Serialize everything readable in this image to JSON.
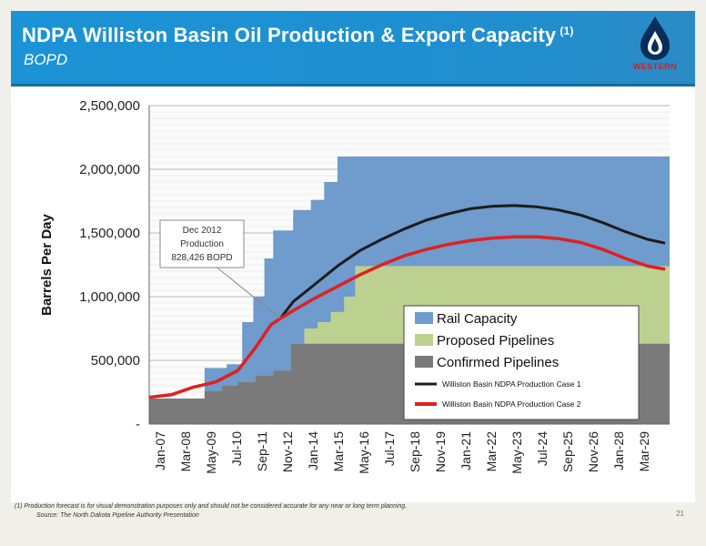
{
  "header": {
    "title": "NDPA Williston Basin Oil Production & Export Capacity",
    "title_sup": "(1)",
    "subtitle": "BOPD",
    "logo_text": "WESTERN",
    "colors": {
      "banner": "#1b93d6",
      "logo_drop": "#0a2e5c",
      "logo_text": "#d32020"
    }
  },
  "chart_data": {
    "type": "area",
    "ylabel": "Barrels Per Day",
    "xlabel": "",
    "ylim": [
      0,
      2500000
    ],
    "y_ticks": [
      {
        "value": 0,
        "label": "-"
      },
      {
        "value": 500000,
        "label": "500,000"
      },
      {
        "value": 1000000,
        "label": "1,000,000"
      },
      {
        "value": 1500000,
        "label": "1,500,000"
      },
      {
        "value": 2000000,
        "label": "2,000,000"
      },
      {
        "value": 2500000,
        "label": "2,500,000"
      }
    ],
    "x_labels": [
      "Jan-07",
      "Mar-08",
      "May-09",
      "Jul-10",
      "Sep-11",
      "Nov-12",
      "Jan-14",
      "Mar-15",
      "May-16",
      "Jul-17",
      "Sep-18",
      "Nov-19",
      "Jan-21",
      "Mar-22",
      "May-23",
      "Jul-24",
      "Sep-25",
      "Nov-26",
      "Jan-28",
      "Mar-29"
    ],
    "x_end": 2030.5,
    "grid": true,
    "legend_position": "bottom-right",
    "annotation": {
      "lines": [
        "Dec 2012",
        "Production",
        "828,426 BOPD"
      ],
      "x": 2012.92,
      "y": 828426
    },
    "series": [
      {
        "name": "Confirmed Pipelines",
        "kind": "area",
        "color": "#7a7a7a",
        "points": [
          [
            2007.0,
            200000
          ],
          [
            2009.5,
            200000
          ],
          [
            2009.5,
            260000
          ],
          [
            2010.3,
            260000
          ],
          [
            2010.3,
            300000
          ],
          [
            2011.0,
            300000
          ],
          [
            2011.0,
            330000
          ],
          [
            2011.8,
            330000
          ],
          [
            2011.8,
            380000
          ],
          [
            2012.6,
            380000
          ],
          [
            2012.6,
            420000
          ],
          [
            2013.4,
            420000
          ],
          [
            2013.4,
            630000
          ],
          [
            2030.5,
            630000
          ]
        ]
      },
      {
        "name": "Proposed Pipelines",
        "kind": "area",
        "color": "#bcd18f",
        "points": [
          [
            2007.0,
            200000
          ],
          [
            2009.5,
            200000
          ],
          [
            2009.5,
            260000
          ],
          [
            2010.3,
            260000
          ],
          [
            2010.3,
            300000
          ],
          [
            2011.0,
            300000
          ],
          [
            2011.0,
            330000
          ],
          [
            2011.8,
            330000
          ],
          [
            2011.8,
            380000
          ],
          [
            2012.6,
            380000
          ],
          [
            2012.6,
            420000
          ],
          [
            2013.4,
            420000
          ],
          [
            2013.4,
            630000
          ],
          [
            2014.0,
            630000
          ],
          [
            2014.0,
            750000
          ],
          [
            2014.6,
            750000
          ],
          [
            2014.6,
            800000
          ],
          [
            2015.2,
            800000
          ],
          [
            2015.2,
            880000
          ],
          [
            2015.8,
            880000
          ],
          [
            2015.8,
            1000000
          ],
          [
            2016.3,
            1000000
          ],
          [
            2016.3,
            1240000
          ],
          [
            2030.5,
            1240000
          ]
        ]
      },
      {
        "name": "Rail Capacity",
        "kind": "area",
        "color": "#6f9bcd",
        "points": [
          [
            2007.0,
            200000
          ],
          [
            2009.5,
            200000
          ],
          [
            2009.5,
            440000
          ],
          [
            2010.5,
            440000
          ],
          [
            2010.5,
            470000
          ],
          [
            2011.2,
            470000
          ],
          [
            2011.2,
            800000
          ],
          [
            2011.7,
            800000
          ],
          [
            2011.7,
            1000000
          ],
          [
            2012.2,
            1000000
          ],
          [
            2012.2,
            1300000
          ],
          [
            2012.6,
            1300000
          ],
          [
            2012.6,
            1520000
          ],
          [
            2013.5,
            1520000
          ],
          [
            2013.5,
            1680000
          ],
          [
            2014.3,
            1680000
          ],
          [
            2014.3,
            1760000
          ],
          [
            2014.9,
            1760000
          ],
          [
            2014.9,
            1900000
          ],
          [
            2015.5,
            1900000
          ],
          [
            2015.5,
            2100000
          ],
          [
            2030.5,
            2100000
          ]
        ]
      },
      {
        "name": "Williston Basin NDPA Production Case 1",
        "kind": "line",
        "color": "#1c1c1c",
        "points": [
          [
            2007.0,
            210000
          ],
          [
            2008.0,
            230000
          ],
          [
            2009.0,
            290000
          ],
          [
            2010.0,
            330000
          ],
          [
            2011.0,
            420000
          ],
          [
            2011.8,
            600000
          ],
          [
            2012.5,
            780000
          ],
          [
            2012.92,
            828426
          ],
          [
            2013.5,
            960000
          ],
          [
            2014.5,
            1100000
          ],
          [
            2015.5,
            1240000
          ],
          [
            2016.5,
            1360000
          ],
          [
            2017.5,
            1450000
          ],
          [
            2018.5,
            1530000
          ],
          [
            2019.5,
            1600000
          ],
          [
            2020.5,
            1650000
          ],
          [
            2021.5,
            1690000
          ],
          [
            2022.5,
            1710000
          ],
          [
            2023.5,
            1715000
          ],
          [
            2024.5,
            1705000
          ],
          [
            2025.5,
            1680000
          ],
          [
            2026.5,
            1640000
          ],
          [
            2027.5,
            1580000
          ],
          [
            2028.5,
            1510000
          ],
          [
            2029.5,
            1450000
          ],
          [
            2030.3,
            1420000
          ]
        ]
      },
      {
        "name": "Williston Basin NDPA Production Case 2",
        "kind": "line",
        "color": "#e02020",
        "points": [
          [
            2007.0,
            210000
          ],
          [
            2008.0,
            230000
          ],
          [
            2009.0,
            290000
          ],
          [
            2010.0,
            330000
          ],
          [
            2011.0,
            420000
          ],
          [
            2011.8,
            600000
          ],
          [
            2012.5,
            780000
          ],
          [
            2012.92,
            828426
          ],
          [
            2013.5,
            890000
          ],
          [
            2014.5,
            990000
          ],
          [
            2015.5,
            1080000
          ],
          [
            2016.5,
            1170000
          ],
          [
            2017.5,
            1250000
          ],
          [
            2018.5,
            1320000
          ],
          [
            2019.5,
            1370000
          ],
          [
            2020.5,
            1410000
          ],
          [
            2021.5,
            1440000
          ],
          [
            2022.5,
            1460000
          ],
          [
            2023.5,
            1470000
          ],
          [
            2024.5,
            1470000
          ],
          [
            2025.5,
            1455000
          ],
          [
            2026.5,
            1425000
          ],
          [
            2027.5,
            1370000
          ],
          [
            2028.5,
            1300000
          ],
          [
            2029.5,
            1240000
          ],
          [
            2030.3,
            1215000
          ]
        ]
      }
    ]
  },
  "footnote": "(1)  Production forecast is for visual demonstration purposes only and should not be considered accurate for any near or long term planning.",
  "source": "Source: The North Dakota Pipeline Authority Presentation",
  "page_number": "21"
}
